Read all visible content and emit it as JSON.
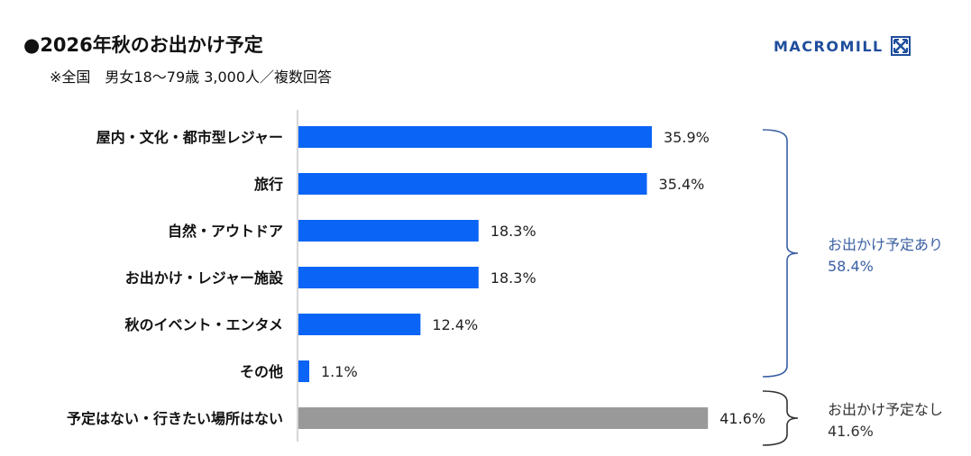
{
  "header": {
    "title": "●2026年秋のお出かけ予定",
    "subtitle": "※全国　男女18～79歳 3,000人／複数回答"
  },
  "logo": {
    "text": "MACROMILL",
    "icon": "macromill-x-logo-icon",
    "color": "#1f4e9c"
  },
  "chart_data": {
    "type": "bar",
    "orientation": "horizontal",
    "title": "●2026年秋のお出かけ予定",
    "subtitle": "※全国　男女18～79歳 3,000人／複数回答",
    "categories": [
      "屋内・文化・都市型レジャー",
      "旅行",
      "自然・アウトドア",
      "お出かけ・レジャー施設",
      "秋のイベント・エンタメ",
      "その他",
      "予定はない・行きたい場所はない"
    ],
    "values": [
      35.9,
      35.4,
      18.3,
      18.3,
      12.4,
      1.1,
      41.6
    ],
    "value_labels": [
      "35.9%",
      "35.4%",
      "18.3%",
      "18.3%",
      "12.4%",
      "1.1%",
      "41.6%"
    ],
    "bar_colors": [
      "#0a64f5",
      "#0a64f5",
      "#0a64f5",
      "#0a64f5",
      "#0a64f5",
      "#0a64f5",
      "#999999"
    ],
    "xlim": [
      0,
      45
    ],
    "grid": false,
    "groups": [
      {
        "label": "お出かけ予定あり",
        "value": "58.4%",
        "from": 0,
        "to": 5,
        "color": "#3a5fa3"
      },
      {
        "label": "お出かけ予定なし",
        "value": "41.6%",
        "from": 6,
        "to": 6,
        "color": "#333333"
      }
    ]
  }
}
